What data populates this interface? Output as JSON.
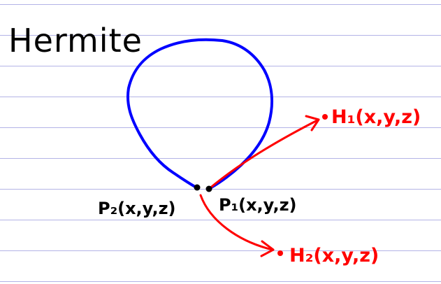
{
  "title": "Hermite",
  "labels": {
    "p1": "P₁(x,y,z)",
    "p2": "P₂(x,y,z)",
    "h1": "H₁(x,y,z)",
    "h2": "H₂(x,y,z)"
  },
  "colors": {
    "ruled_lines": "#b3b3e6",
    "curve": "#0000ff",
    "tangent": "#ff0000",
    "points": "#000000",
    "text": "#000000"
  }
}
